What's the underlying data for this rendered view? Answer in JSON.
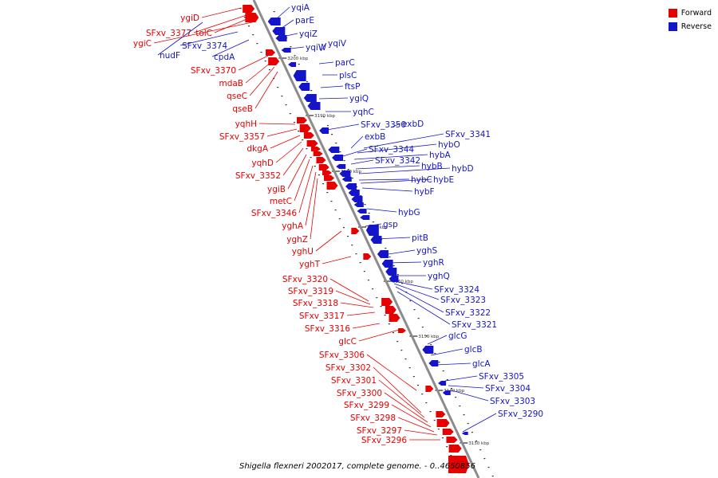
{
  "caption": "Shigella flexneri 2002017, complete genome. - 0..4650856",
  "colors": {
    "forward": "#e60000",
    "reverse": "#1414c8",
    "backbone": "#8c8c8c"
  },
  "legend": [
    {
      "label": "Forward",
      "color": "#e60000"
    },
    {
      "label": "Reverse",
      "color": "#1414c8"
    }
  ],
  "scale_marks": [
    "3200 kbp",
    "3190 kbp",
    "3180 kbp",
    "3170 kbp",
    "3160 kbp",
    "3150 kbp",
    "3140 kbp",
    "3130 kbp"
  ],
  "forward_genes": [
    "ygiD",
    "SFxv_3377",
    "tolC",
    "ygiC",
    "SFxv_3370",
    "mdaB",
    "qseC",
    "qseB",
    "yqhH",
    "SFxv_3357",
    "dkgA",
    "yqhD",
    "SFxv_3352",
    "ygiB",
    "metC",
    "SFxv_3346",
    "yghA",
    "yghZ",
    "yghU",
    "yghT",
    "SFxv_3320",
    "SFxv_3319",
    "SFxv_3318",
    "SFxv_3317",
    "SFxv_3316",
    "glcC",
    "SFxv_3306",
    "SFxv_3302",
    "SFxv_3301",
    "SFxv_3300",
    "SFxv_3299",
    "SFxv_3298",
    "SFxv_3297",
    "SFxv_3296"
  ],
  "reverse_genes": [
    "nudF",
    "SFxv_3374",
    "cpdA",
    "yqiA",
    "parE",
    "yqiZ",
    "yqiW",
    "yqiV",
    "parC",
    "plsC",
    "ftsP",
    "ygiQ",
    "yqhC",
    "SFxv_3350",
    "exbD",
    "exbB",
    "SFxv_3341",
    "hybO",
    "SFxv_3344",
    "hybA",
    "SFxv_3342",
    "hybB",
    "hybD",
    "hybC",
    "hybE",
    "hybF",
    "hybG",
    "gsp",
    "pitB",
    "yghS",
    "yghR",
    "yghQ",
    "SFxv_3324",
    "SFxv_3323",
    "SFxv_3322",
    "SFxv_3321",
    "glcG",
    "glcB",
    "glcA",
    "SFxv_3305",
    "SFxv_3304",
    "SFxv_3303",
    "SFxv_3290"
  ]
}
